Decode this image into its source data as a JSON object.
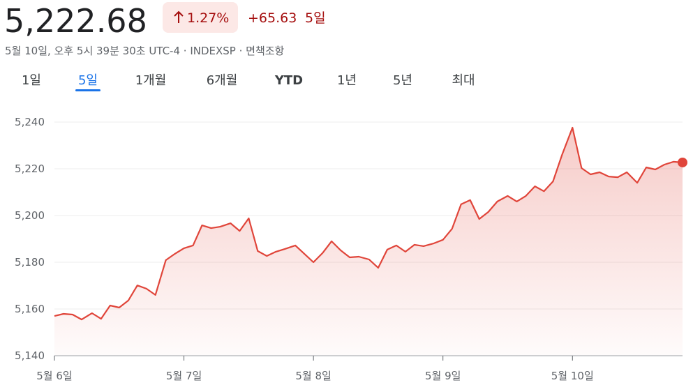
{
  "header": {
    "price": "5,222.68",
    "change_percent": "1.27%",
    "change": "+65.63",
    "period": "5일",
    "subtitle": "5월 10일, 오후 5시 39분 30초 UTC-4 · INDEXSP · 면책조항"
  },
  "tabs": {
    "items": [
      "1일",
      "5일",
      "1개월",
      "6개월",
      "YTD",
      "1년",
      "5년",
      "최대"
    ],
    "selected": 1
  },
  "chart_data": {
    "type": "area-line",
    "color": "#e0453a",
    "grid": true,
    "x": [
      0,
      0.07,
      0.14,
      0.21,
      0.29,
      0.36,
      0.43,
      0.5,
      0.57,
      0.64,
      0.71,
      0.78,
      0.86,
      0.93,
      1.0,
      1.07,
      1.14,
      1.21,
      1.28,
      1.36,
      1.43,
      1.5,
      1.57,
      1.64,
      1.71,
      1.78,
      1.86,
      1.93,
      2.0,
      2.07,
      2.14,
      2.21,
      2.28,
      2.35,
      2.43,
      2.5,
      2.57,
      2.64,
      2.71,
      2.78,
      2.85,
      2.93,
      3.0,
      3.07,
      3.14,
      3.21,
      3.28,
      3.35,
      3.42,
      3.5,
      3.57,
      3.64,
      3.71,
      3.78,
      3.85,
      3.92,
      4.0,
      4.07,
      4.14,
      4.21,
      4.28,
      4.35,
      4.42,
      4.5,
      4.57,
      4.64,
      4.71,
      4.78,
      4.85
    ],
    "values": [
      5157.0,
      5157.9,
      5157.6,
      5155.5,
      5158.2,
      5155.8,
      5161.5,
      5160.6,
      5163.6,
      5170.1,
      5168.7,
      5166.0,
      5180.9,
      5183.6,
      5186.0,
      5187.2,
      5195.8,
      5194.6,
      5195.2,
      5196.7,
      5193.4,
      5198.8,
      5184.8,
      5182.7,
      5184.5,
      5185.7,
      5187.2,
      5183.6,
      5180.0,
      5183.9,
      5189.0,
      5185.1,
      5182.1,
      5182.4,
      5181.2,
      5177.6,
      5185.4,
      5187.2,
      5184.5,
      5187.5,
      5186.9,
      5188.1,
      5189.6,
      5194.3,
      5204.8,
      5206.6,
      5198.5,
      5201.5,
      5206.0,
      5208.4,
      5206.0,
      5208.4,
      5212.5,
      5210.4,
      5214.6,
      5226.0,
      5237.6,
      5220.3,
      5217.6,
      5218.5,
      5216.7,
      5216.4,
      5218.5,
      5214.0,
      5220.6,
      5219.7,
      5221.8,
      5223.0,
      5222.7
    ],
    "xlim": [
      0,
      4.85
    ],
    "xticks": [
      {
        "value": 0,
        "label": "5월 6일"
      },
      {
        "value": 1,
        "label": "5월 7일"
      },
      {
        "value": 2,
        "label": "5월 8일"
      },
      {
        "value": 3,
        "label": "5월 9일"
      },
      {
        "value": 4,
        "label": "5월 10일"
      }
    ],
    "ylim": [
      5140,
      5240
    ],
    "yticks": [
      {
        "value": 5140,
        "label": "5,140"
      },
      {
        "value": 5160,
        "label": "5,160"
      },
      {
        "value": 5180,
        "label": "5,180"
      },
      {
        "value": 5200,
        "label": "5,200"
      },
      {
        "value": 5220,
        "label": "5,220"
      },
      {
        "value": 5240,
        "label": "5,240"
      }
    ]
  }
}
